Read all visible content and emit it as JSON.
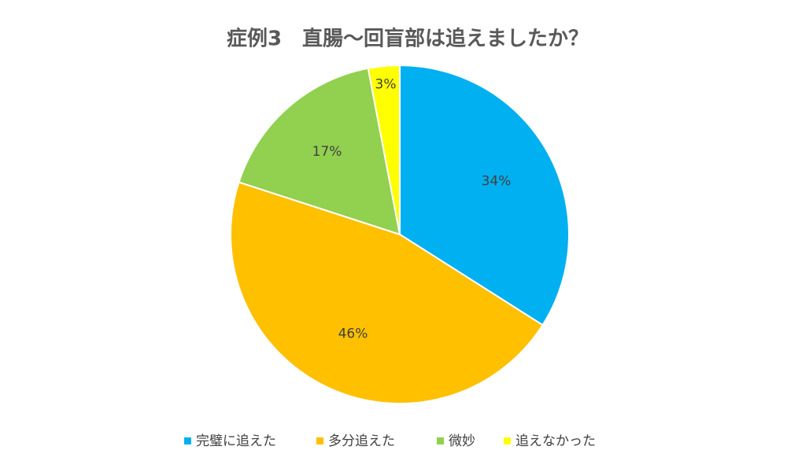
{
  "chart_data": {
    "type": "pie",
    "title": "症例3　直腸～回盲部は追えましたか？",
    "categories": [
      "完璧に追えた",
      "多分追えた",
      "微妙",
      "追えなかった"
    ],
    "values": [
      34,
      46,
      17,
      3
    ],
    "value_labels": [
      "34%",
      "46%",
      "17%",
      "3%"
    ],
    "colors": [
      "#00b0f0",
      "#ffc000",
      "#92d050",
      "#ffff00"
    ],
    "legend": "bottom"
  }
}
